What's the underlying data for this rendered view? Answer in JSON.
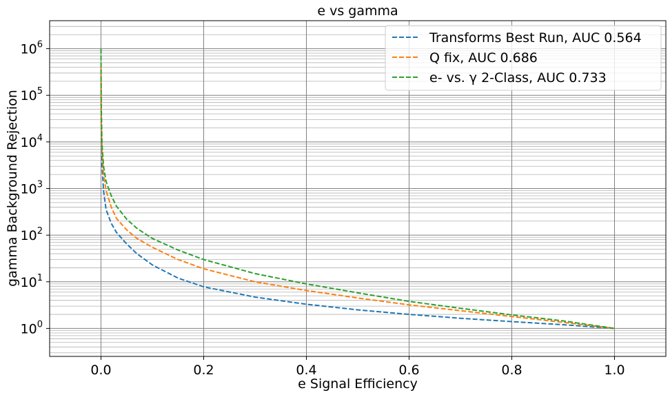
{
  "chart_data": {
    "type": "line",
    "title": "e vs gamma",
    "xlabel": "e Signal Efficiency",
    "ylabel": "gamma Background Rejection",
    "xlim": [
      -0.1,
      1.1
    ],
    "ylim_log10": [
      -0.6,
      6.6
    ],
    "yscale": "log",
    "grid": "major and minor",
    "legend_position": "top-right",
    "x_ticks": [
      {
        "value": 0.0,
        "label": "0.0"
      },
      {
        "value": 0.2,
        "label": "0.2"
      },
      {
        "value": 0.4,
        "label": "0.4"
      },
      {
        "value": 0.6,
        "label": "0.6"
      },
      {
        "value": 0.8,
        "label": "0.8"
      },
      {
        "value": 1.0,
        "label": "1.0"
      }
    ],
    "y_ticks": [
      {
        "value": 1,
        "base": "10",
        "exp": "0"
      },
      {
        "value": 10,
        "base": "10",
        "exp": "1"
      },
      {
        "value": 100,
        "base": "10",
        "exp": "2"
      },
      {
        "value": 1000,
        "base": "10",
        "exp": "3"
      },
      {
        "value": 10000,
        "base": "10",
        "exp": "4"
      },
      {
        "value": 100000,
        "base": "10",
        "exp": "5"
      },
      {
        "value": 1000000,
        "base": "10",
        "exp": "6"
      }
    ],
    "series": [
      {
        "name": "Transforms Best Run, AUC 0.564",
        "color": "#1f77b4",
        "style": "dashed",
        "points": [
          [
            0.0,
            300000
          ],
          [
            0.0005,
            20000
          ],
          [
            0.002,
            3000
          ],
          [
            0.005,
            900
          ],
          [
            0.01,
            350
          ],
          [
            0.02,
            180
          ],
          [
            0.03,
            115
          ],
          [
            0.05,
            65
          ],
          [
            0.07,
            40
          ],
          [
            0.1,
            23
          ],
          [
            0.15,
            12
          ],
          [
            0.2,
            7.8
          ],
          [
            0.3,
            4.7
          ],
          [
            0.4,
            3.3
          ],
          [
            0.5,
            2.5
          ],
          [
            0.6,
            2.0
          ],
          [
            0.7,
            1.65
          ],
          [
            0.8,
            1.4
          ],
          [
            0.9,
            1.2
          ],
          [
            1.0,
            1.0
          ]
        ]
      },
      {
        "name": "Q fix, AUC 0.686",
        "color": "#ff7f0e",
        "style": "dashed",
        "points": [
          [
            0.0,
            400000
          ],
          [
            0.0005,
            30000
          ],
          [
            0.002,
            6000
          ],
          [
            0.005,
            2000
          ],
          [
            0.01,
            900
          ],
          [
            0.02,
            400
          ],
          [
            0.03,
            230
          ],
          [
            0.05,
            130
          ],
          [
            0.07,
            85
          ],
          [
            0.1,
            55
          ],
          [
            0.15,
            30
          ],
          [
            0.2,
            19
          ],
          [
            0.3,
            10
          ],
          [
            0.4,
            6.5
          ],
          [
            0.5,
            4.5
          ],
          [
            0.6,
            3.2
          ],
          [
            0.7,
            2.4
          ],
          [
            0.8,
            1.8
          ],
          [
            0.9,
            1.35
          ],
          [
            1.0,
            1.0
          ]
        ]
      },
      {
        "name": "e- vs. γ 2-Class, AUC 0.733",
        "color": "#2ca02c",
        "style": "dashed",
        "points": [
          [
            0.0,
            1000000
          ],
          [
            0.0005,
            60000
          ],
          [
            0.002,
            9000
          ],
          [
            0.005,
            3000
          ],
          [
            0.01,
            1400
          ],
          [
            0.02,
            700
          ],
          [
            0.03,
            420
          ],
          [
            0.05,
            220
          ],
          [
            0.07,
            140
          ],
          [
            0.1,
            85
          ],
          [
            0.15,
            48
          ],
          [
            0.2,
            30
          ],
          [
            0.3,
            15
          ],
          [
            0.4,
            9
          ],
          [
            0.5,
            5.8
          ],
          [
            0.6,
            3.8
          ],
          [
            0.7,
            2.7
          ],
          [
            0.8,
            1.95
          ],
          [
            0.9,
            1.45
          ],
          [
            1.0,
            1.0
          ]
        ]
      }
    ]
  }
}
